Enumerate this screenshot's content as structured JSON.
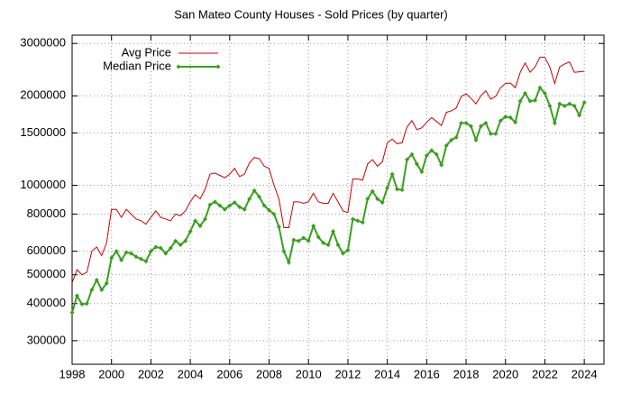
{
  "chart_data": {
    "type": "line",
    "title": "San Mateo County Houses - Sold Prices (by quarter)",
    "x": [
      1998,
      1998.25,
      1998.5,
      1998.75,
      1999,
      1999.25,
      1999.5,
      1999.75,
      2000,
      2000.25,
      2000.5,
      2000.75,
      2001,
      2001.25,
      2001.5,
      2001.75,
      2002,
      2002.25,
      2002.5,
      2002.75,
      2003,
      2003.25,
      2003.5,
      2003.75,
      2004,
      2004.25,
      2004.5,
      2004.75,
      2005,
      2005.25,
      2005.5,
      2005.75,
      2006,
      2006.25,
      2006.5,
      2006.75,
      2007,
      2007.25,
      2007.5,
      2007.75,
      2008,
      2008.25,
      2008.5,
      2008.75,
      2009,
      2009.25,
      2009.5,
      2009.75,
      2010,
      2010.25,
      2010.5,
      2010.75,
      2011,
      2011.25,
      2011.5,
      2011.75,
      2012,
      2012.25,
      2012.5,
      2012.75,
      2013,
      2013.25,
      2013.5,
      2013.75,
      2014,
      2014.25,
      2014.5,
      2014.75,
      2015,
      2015.25,
      2015.5,
      2015.75,
      2016,
      2016.25,
      2016.5,
      2016.75,
      2017,
      2017.25,
      2017.5,
      2017.75,
      2018,
      2018.25,
      2018.5,
      2018.75,
      2019,
      2019.25,
      2019.5,
      2019.75,
      2020,
      2020.25,
      2020.5,
      2020.75,
      2021,
      2021.25,
      2021.5,
      2021.75,
      2022,
      2022.25,
      2022.5,
      2022.75,
      2023,
      2023.25,
      2023.5,
      2023.75,
      2024
    ],
    "series": [
      {
        "name": "Avg Price",
        "color": "#cc0000",
        "marker": false,
        "values": [
          470000,
          520000,
          500000,
          510000,
          600000,
          620000,
          580000,
          640000,
          830000,
          830000,
          780000,
          830000,
          800000,
          770000,
          760000,
          740000,
          780000,
          820000,
          780000,
          770000,
          760000,
          800000,
          790000,
          820000,
          880000,
          930000,
          900000,
          970000,
          1090000,
          1100000,
          1080000,
          1060000,
          1090000,
          1140000,
          1070000,
          1090000,
          1190000,
          1240000,
          1230000,
          1160000,
          1140000,
          1000000,
          900000,
          720000,
          720000,
          880000,
          880000,
          870000,
          880000,
          940000,
          880000,
          870000,
          870000,
          940000,
          880000,
          820000,
          810000,
          1050000,
          1050000,
          1040000,
          1180000,
          1220000,
          1160000,
          1200000,
          1390000,
          1430000,
          1380000,
          1390000,
          1570000,
          1650000,
          1540000,
          1560000,
          1630000,
          1690000,
          1640000,
          1590000,
          1760000,
          1780000,
          1820000,
          1990000,
          2030000,
          1960000,
          1880000,
          2000000,
          2080000,
          1950000,
          1990000,
          2130000,
          2200000,
          2210000,
          2130000,
          2400000,
          2580000,
          2400000,
          2500000,
          2700000,
          2700000,
          2500000,
          2200000,
          2500000,
          2560000,
          2600000,
          2400000,
          2410000,
          2420000
        ]
      },
      {
        "name": "Median Price",
        "color": "#3a9f1f",
        "marker": true,
        "values": [
          373000,
          425000,
          398000,
          400000,
          445000,
          480000,
          445000,
          468000,
          570000,
          600000,
          560000,
          595000,
          590000,
          575000,
          565000,
          555000,
          600000,
          620000,
          615000,
          590000,
          615000,
          650000,
          630000,
          650000,
          700000,
          760000,
          730000,
          770000,
          860000,
          880000,
          855000,
          830000,
          855000,
          875000,
          845000,
          830000,
          900000,
          960000,
          915000,
          855000,
          825000,
          800000,
          725000,
          600000,
          550000,
          655000,
          650000,
          665000,
          650000,
          730000,
          670000,
          640000,
          630000,
          700000,
          630000,
          590000,
          605000,
          770000,
          760000,
          750000,
          900000,
          955000,
          900000,
          875000,
          980000,
          1090000,
          970000,
          965000,
          1220000,
          1270000,
          1180000,
          1110000,
          1260000,
          1310000,
          1270000,
          1170000,
          1360000,
          1420000,
          1450000,
          1620000,
          1620000,
          1580000,
          1420000,
          1580000,
          1620000,
          1490000,
          1490000,
          1650000,
          1700000,
          1690000,
          1630000,
          1920000,
          2040000,
          1920000,
          1930000,
          2130000,
          2040000,
          1850000,
          1620000,
          1880000,
          1850000,
          1880000,
          1850000,
          1720000,
          1900000
        ]
      }
    ],
    "xlim": [
      1998,
      2025
    ],
    "xticks": [
      1998,
      2000,
      2002,
      2004,
      2006,
      2008,
      2010,
      2012,
      2014,
      2016,
      2018,
      2020,
      2022,
      2024
    ],
    "ylim": [
      250000,
      3200000
    ],
    "yticks": [
      300000,
      400000,
      500000,
      600000,
      800000,
      1000000,
      1500000,
      2000000,
      3000000
    ],
    "log_y": true,
    "grid": true,
    "legend": "top-left"
  }
}
